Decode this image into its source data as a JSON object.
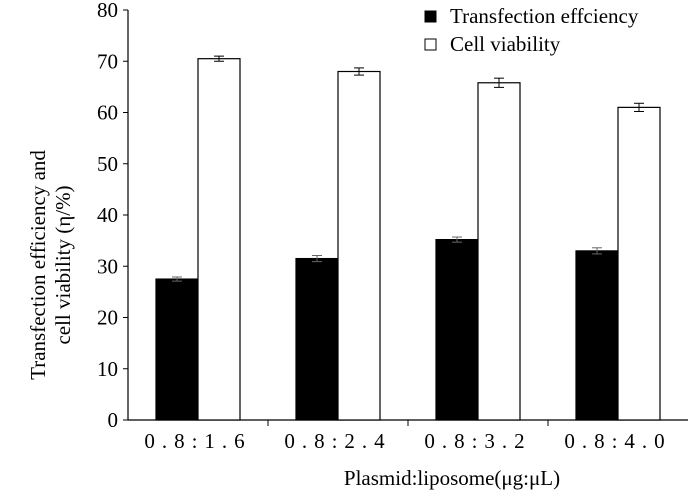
{
  "chart_data": {
    "type": "bar",
    "categories": [
      "0.8:1.6",
      "0.8:2.4",
      "0.8:3.2",
      "0.8:4.0"
    ],
    "series": [
      {
        "name": "Transfection effciency",
        "values": [
          27.5,
          31.5,
          35.2,
          33.0
        ],
        "errors": [
          0.4,
          0.6,
          0.5,
          0.6
        ],
        "color": "#000000"
      },
      {
        "name": "Cell viability",
        "values": [
          70.5,
          68.0,
          65.8,
          61.0
        ],
        "errors": [
          0.5,
          0.7,
          0.9,
          0.8
        ],
        "color": "#ffffff"
      }
    ],
    "xlabel": "Plasmid:liposome(μg:μL)",
    "ylabel_line1": "Transfection efficiency and",
    "ylabel_line2": "cell viability (η/%)",
    "ylim": [
      0,
      80
    ],
    "yticks": [
      0,
      10,
      20,
      30,
      40,
      50,
      60,
      70,
      80
    ],
    "grid": false,
    "legend": "top-right"
  }
}
